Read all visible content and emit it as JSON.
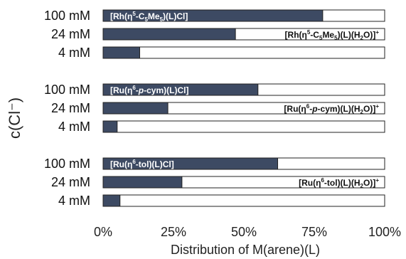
{
  "chart_data": {
    "type": "bar",
    "orientation": "horizontal",
    "stacked_100": true,
    "xlabel": "Distribution of M(arene)(L)",
    "ylabel": "c(Cl⁻)",
    "x_ticks": [
      "0%",
      "25%",
      "50%",
      "75%",
      "100%"
    ],
    "xlim": [
      0,
      100
    ],
    "grid": false,
    "colors": {
      "chloride": "#3d4a63",
      "aqua": "#ffffff",
      "outline": "#222222"
    },
    "groups": [
      {
        "chloride_label": "[Rh(η5-C5Me5)(L)Cl]",
        "aqua_label": "[Rh(η5-C5Me5)(L)(H2O)]+",
        "label_parts_chloride": [
          {
            "t": "[Rh(η",
            "s": ""
          },
          {
            "t": "5",
            "s": "sup"
          },
          {
            "t": "-C",
            "s": ""
          },
          {
            "t": "5",
            "s": "sub"
          },
          {
            "t": "Me",
            "s": ""
          },
          {
            "t": "5",
            "s": "sub"
          },
          {
            "t": ")(L)Cl]",
            "s": ""
          }
        ],
        "label_parts_aqua": [
          {
            "t": "[Rh(η",
            "s": ""
          },
          {
            "t": "5",
            "s": "sup"
          },
          {
            "t": "-C",
            "s": ""
          },
          {
            "t": "5",
            "s": "sub"
          },
          {
            "t": "Me",
            "s": ""
          },
          {
            "t": "5",
            "s": "sub"
          },
          {
            "t": ")(L)(H",
            "s": ""
          },
          {
            "t": "2",
            "s": "sub"
          },
          {
            "t": "O)]",
            "s": ""
          },
          {
            "t": "+",
            "s": "sup"
          }
        ],
        "categories": [
          "100 mM",
          "24 mM",
          "4 mM"
        ],
        "chloride_percent": [
          78,
          47,
          13
        ]
      },
      {
        "chloride_label": "[Ru(η6-p-cym)(L)Cl]",
        "aqua_label": "[Ru(η6-p-cym)(L)(H2O)]+",
        "label_parts_chloride": [
          {
            "t": "[Ru(η",
            "s": ""
          },
          {
            "t": "6",
            "s": "sup"
          },
          {
            "t": "-",
            "s": ""
          },
          {
            "t": "p",
            "s": "it"
          },
          {
            "t": "-cym)(L)Cl]",
            "s": ""
          }
        ],
        "label_parts_aqua": [
          {
            "t": "[Ru(η",
            "s": ""
          },
          {
            "t": "6",
            "s": "sup"
          },
          {
            "t": "-",
            "s": ""
          },
          {
            "t": "p",
            "s": "it"
          },
          {
            "t": "-cym)(L)(H",
            "s": ""
          },
          {
            "t": "2",
            "s": "sub"
          },
          {
            "t": "O)]",
            "s": ""
          },
          {
            "t": "+",
            "s": "sup"
          }
        ],
        "categories": [
          "100 mM",
          "24 mM",
          "4 mM"
        ],
        "chloride_percent": [
          55,
          23,
          5
        ]
      },
      {
        "chloride_label": "[Ru(η6-tol)(L)Cl]",
        "aqua_label": "[Ru(η6-tol)(L)(H2O)]+",
        "label_parts_chloride": [
          {
            "t": "[Ru(η",
            "s": ""
          },
          {
            "t": "6",
            "s": "sup"
          },
          {
            "t": "-tol)(L)Cl]",
            "s": ""
          }
        ],
        "label_parts_aqua": [
          {
            "t": "[Ru(η",
            "s": ""
          },
          {
            "t": "6",
            "s": "sup"
          },
          {
            "t": "-tol)(L)(H",
            "s": ""
          },
          {
            "t": "2",
            "s": "sub"
          },
          {
            "t": "O)]",
            "s": ""
          },
          {
            "t": "+",
            "s": "sup"
          }
        ],
        "categories": [
          "100 mM",
          "24 mM",
          "4 mM"
        ],
        "chloride_percent": [
          62,
          28,
          6
        ]
      }
    ]
  }
}
